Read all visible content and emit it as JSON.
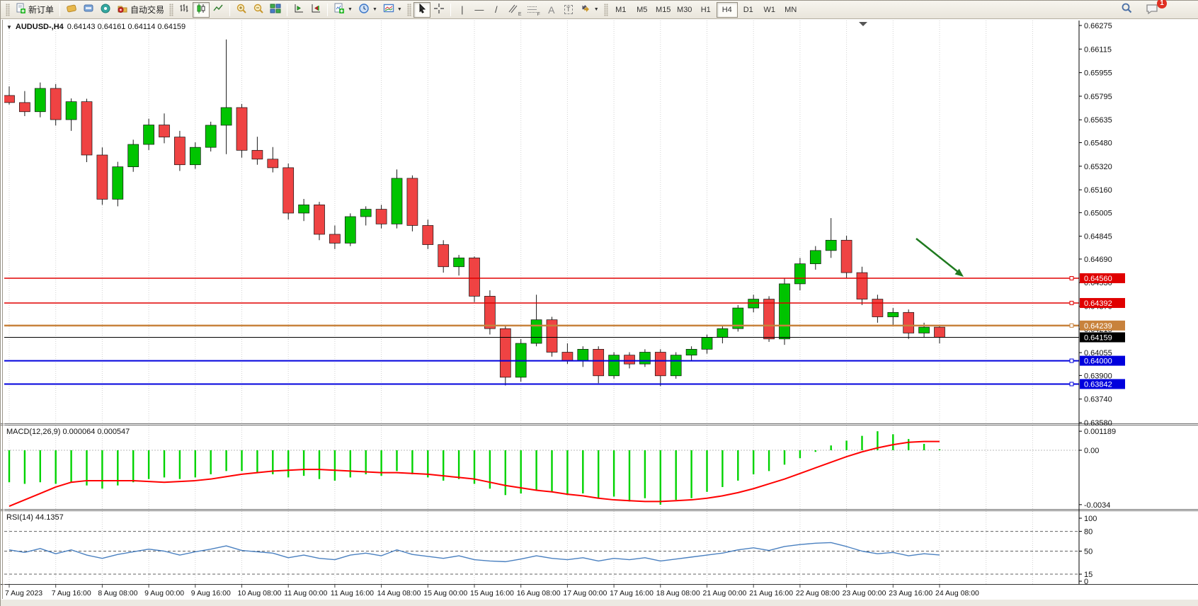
{
  "toolbar": {
    "new_order_label": "新订单",
    "autotrading_label": "自动交易",
    "timeframes": [
      "M1",
      "M5",
      "M15",
      "M30",
      "H1",
      "H4",
      "D1",
      "W1",
      "MN"
    ],
    "active_timeframe": "H4",
    "notification_count": "1",
    "glyphs": {
      "vline": "|",
      "hline": "—",
      "trendline": "/",
      "text": "A",
      "label": "T",
      "channel_letter": "E",
      "fibo_letter": "F",
      "caret": "▼"
    }
  },
  "chart_data": {
    "type": "candlestick",
    "symbol": "AUDUSD-",
    "timeframe": "H4",
    "title_display": "AUDUSD-,H4",
    "ohlc_display": "0.64143 0.64161 0.64114 0.64159",
    "price_axis": {
      "top_price": 0.66275,
      "bottom_price": 0.6358,
      "ticks": [
        "0.66275",
        "0.66115",
        "0.65955",
        "0.65795",
        "0.65635",
        "0.65480",
        "0.65320",
        "0.65160",
        "0.65005",
        "0.64845",
        "0.64690",
        "0.64530",
        "0.64370",
        "0.64215",
        "0.64055",
        "0.63900",
        "0.63740",
        "0.63580"
      ]
    },
    "time_labels": [
      "7 Aug 2023",
      "7 Aug 16:00",
      "8 Aug 08:00",
      "9 Aug 00:00",
      "9 Aug 16:00",
      "10 Aug 08:00",
      "11 Aug 00:00",
      "11 Aug 16:00",
      "14 Aug 08:00",
      "15 Aug 00:00",
      "15 Aug 16:00",
      "16 Aug 08:00",
      "17 Aug 00:00",
      "17 Aug 16:00",
      "18 Aug 08:00",
      "21 Aug 00:00",
      "21 Aug 16:00",
      "22 Aug 08:00",
      "23 Aug 00:00",
      "23 Aug 16:00",
      "24 Aug 08:00"
    ],
    "candles": [
      [
        0.658,
        0.65862,
        0.65738,
        0.65752
      ],
      [
        0.65752,
        0.6583,
        0.6566,
        0.6569
      ],
      [
        0.6569,
        0.65888,
        0.65652,
        0.65848
      ],
      [
        0.65848,
        0.65878,
        0.65596,
        0.65636
      ],
      [
        0.65636,
        0.6578,
        0.6556,
        0.65758
      ],
      [
        0.65758,
        0.65778,
        0.65348,
        0.65396
      ],
      [
        0.65396,
        0.65448,
        0.65058,
        0.65096
      ],
      [
        0.65096,
        0.6535,
        0.65048,
        0.65316
      ],
      [
        0.65316,
        0.655,
        0.65282,
        0.65468
      ],
      [
        0.65468,
        0.65642,
        0.6543,
        0.656
      ],
      [
        0.656,
        0.65678,
        0.65476,
        0.65518
      ],
      [
        0.65518,
        0.6556,
        0.65288,
        0.6533
      ],
      [
        0.6533,
        0.65482,
        0.65302,
        0.65448
      ],
      [
        0.65448,
        0.65622,
        0.6542,
        0.65598
      ],
      [
        0.65598,
        0.6618,
        0.65402,
        0.65718
      ],
      [
        0.65718,
        0.65742,
        0.65378,
        0.65428
      ],
      [
        0.65428,
        0.6552,
        0.6533,
        0.65368
      ],
      [
        0.65368,
        0.6545,
        0.65278,
        0.6531
      ],
      [
        0.6531,
        0.65338,
        0.64958,
        0.65002
      ],
      [
        0.65002,
        0.65098,
        0.64948,
        0.65058
      ],
      [
        0.65058,
        0.65078,
        0.64818,
        0.64858
      ],
      [
        0.64858,
        0.64918,
        0.64758,
        0.64798
      ],
      [
        0.64798,
        0.65,
        0.64778,
        0.64978
      ],
      [
        0.64978,
        0.65048,
        0.64918,
        0.65028
      ],
      [
        0.65028,
        0.65058,
        0.64898,
        0.64928
      ],
      [
        0.64928,
        0.65298,
        0.64898,
        0.65238
      ],
      [
        0.65238,
        0.65258,
        0.64878,
        0.64918
      ],
      [
        0.64918,
        0.64958,
        0.64758,
        0.64788
      ],
      [
        0.64788,
        0.64818,
        0.64598,
        0.64638
      ],
      [
        0.64638,
        0.64718,
        0.64578,
        0.64698
      ],
      [
        0.64698,
        0.64708,
        0.64398,
        0.64438
      ],
      [
        0.64438,
        0.64478,
        0.64178,
        0.64218
      ],
      [
        0.64218,
        0.64238,
        0.63832,
        0.63888
      ],
      [
        0.63888,
        0.64148,
        0.63858,
        0.64118
      ],
      [
        0.64118,
        0.64448,
        0.64098,
        0.64278
      ],
      [
        0.64278,
        0.64298,
        0.64028,
        0.64058
      ],
      [
        0.64058,
        0.64118,
        0.63978,
        0.63998
      ],
      [
        0.63998,
        0.64098,
        0.63958,
        0.64078
      ],
      [
        0.64078,
        0.64098,
        0.63848,
        0.63898
      ],
      [
        0.63898,
        0.64058,
        0.63878,
        0.64038
      ],
      [
        0.64038,
        0.64058,
        0.63948,
        0.63978
      ],
      [
        0.63978,
        0.64078,
        0.63958,
        0.64058
      ],
      [
        0.64058,
        0.64078,
        0.63828,
        0.63898
      ],
      [
        0.63898,
        0.64058,
        0.63878,
        0.64038
      ],
      [
        0.64038,
        0.64098,
        0.63998,
        0.64078
      ],
      [
        0.64078,
        0.64178,
        0.64048,
        0.64158
      ],
      [
        0.64158,
        0.64238,
        0.64118,
        0.64218
      ],
      [
        0.64218,
        0.64378,
        0.64198,
        0.64358
      ],
      [
        0.64358,
        0.64448,
        0.64328,
        0.64418
      ],
      [
        0.64418,
        0.64438,
        0.64128,
        0.64148
      ],
      [
        0.64148,
        0.64562,
        0.64108,
        0.64522
      ],
      [
        0.64522,
        0.64698,
        0.64478,
        0.64658
      ],
      [
        0.64658,
        0.64778,
        0.64618,
        0.64748
      ],
      [
        0.64748,
        0.64968,
        0.64698,
        0.64818
      ],
      [
        0.64818,
        0.64848,
        0.64558,
        0.64598
      ],
      [
        0.64598,
        0.64638,
        0.64378,
        0.64418
      ],
      [
        0.64418,
        0.64448,
        0.64258,
        0.64298
      ],
      [
        0.64298,
        0.64358,
        0.64238,
        0.64328
      ],
      [
        0.64328,
        0.64348,
        0.64148,
        0.64188
      ],
      [
        0.64188,
        0.64258,
        0.64158,
        0.64228
      ],
      [
        0.64228,
        0.64238,
        0.64118,
        0.64159
      ]
    ],
    "hlines": [
      {
        "price": 0.6456,
        "label": "0.64560",
        "color": "#e00000",
        "width": 1.5
      },
      {
        "price": 0.64392,
        "label": "0.64392",
        "color": "#e00000",
        "width": 1.5
      },
      {
        "price": 0.64239,
        "label": "0.64239",
        "color": "#c8823c",
        "width": 2.5
      },
      {
        "price": 0.64,
        "label": "0.64000",
        "color": "#0000dd",
        "width": 2
      },
      {
        "price": 0.63842,
        "label": "0.63842",
        "color": "#0000dd",
        "width": 2
      }
    ],
    "current_price": {
      "price": 0.64159,
      "label": "0.64159",
      "color": "#000000"
    },
    "annotation_arrow": {
      "color": "#1f7a1f"
    },
    "macd": {
      "display": "MACD(12,26,9) 0.000064 0.000547",
      "name": "MACD(12,26,9)",
      "value": "0.000064",
      "signal_value": "0.000547",
      "axis_ticks": [
        "0.001189",
        "0.00",
        "-0.0034"
      ],
      "axis_tick_values": [
        0.001189,
        0.0,
        -0.0034
      ],
      "colors": {
        "histogram": "#00d300",
        "signal": "#ff0000"
      },
      "histogram": [
        -0.002,
        -0.0021,
        -0.002,
        -0.0021,
        -0.002,
        -0.0022,
        -0.0024,
        -0.0022,
        -0.002,
        -0.0018,
        -0.0017,
        -0.0018,
        -0.0017,
        -0.0015,
        -0.0013,
        -0.0013,
        -0.0014,
        -0.0015,
        -0.0017,
        -0.0016,
        -0.0018,
        -0.0019,
        -0.0017,
        -0.0015,
        -0.0016,
        -0.0013,
        -0.0015,
        -0.0017,
        -0.0019,
        -0.0018,
        -0.0021,
        -0.0024,
        -0.0028,
        -0.0027,
        -0.0025,
        -0.0026,
        -0.0028,
        -0.0027,
        -0.003,
        -0.0029,
        -0.0032,
        -0.003,
        -0.0034,
        -0.0031,
        -0.003,
        -0.0026,
        -0.0023,
        -0.0019,
        -0.0015,
        -0.0013,
        -0.0009,
        -0.0005,
        -0.0001,
        0.0003,
        0.0006,
        0.0009,
        0.001189,
        0.001,
        0.0007,
        0.0004,
        6.4e-05
      ],
      "signal": [
        -0.0035,
        -0.0031,
        -0.0027,
        -0.0023,
        -0.002,
        -0.0019,
        -0.0019,
        -0.0019,
        -0.0019,
        -0.00195,
        -0.002,
        -0.00195,
        -0.0019,
        -0.0018,
        -0.00165,
        -0.0015,
        -0.0014,
        -0.0013,
        -0.00125,
        -0.0012,
        -0.0012,
        -0.00125,
        -0.0013,
        -0.00135,
        -0.0014,
        -0.0014,
        -0.00145,
        -0.0015,
        -0.0016,
        -0.0017,
        -0.0018,
        -0.002,
        -0.0022,
        -0.00235,
        -0.0025,
        -0.0026,
        -0.00275,
        -0.00285,
        -0.003,
        -0.0031,
        -0.00315,
        -0.0032,
        -0.0032,
        -0.00315,
        -0.0031,
        -0.003,
        -0.00285,
        -0.00265,
        -0.0024,
        -0.0021,
        -0.0018,
        -0.00145,
        -0.0011,
        -0.00075,
        -0.0004,
        -0.0001,
        0.00015,
        0.00035,
        0.0005,
        0.000547,
        0.000547
      ]
    },
    "rsi": {
      "display": "RSI(14) 44.1357",
      "name": "RSI(14)",
      "value": "44.1357",
      "levels": [
        "100",
        "80",
        "50",
        "15",
        "0"
      ],
      "level_values": [
        100,
        80,
        50,
        15,
        0
      ],
      "dashed_levels": [
        80,
        50,
        15
      ],
      "color": "#4a80c0",
      "values": [
        52,
        48,
        54,
        46,
        52,
        44,
        39,
        45,
        49,
        53,
        50,
        44,
        49,
        53,
        58,
        51,
        49,
        47,
        40,
        44,
        39,
        37,
        44,
        47,
        43,
        52,
        45,
        42,
        39,
        43,
        37,
        35,
        34,
        38,
        43,
        39,
        37,
        40,
        35,
        39,
        37,
        40,
        35,
        38,
        41,
        44,
        47,
        52,
        55,
        51,
        57,
        60,
        62,
        63,
        57,
        50,
        46,
        48,
        43,
        46,
        44.14
      ],
      "grid": false
    },
    "colors": {
      "bull": "#00c400",
      "bear": "#ef4343",
      "wick": "#1a1a1a",
      "grid": "#d2d2d2"
    }
  }
}
